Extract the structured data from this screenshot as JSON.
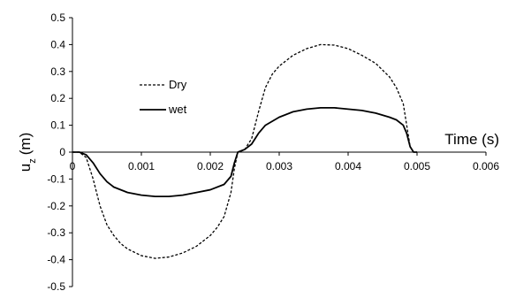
{
  "chart_data": {
    "type": "line",
    "xlabel": "Time (s)",
    "ylabel_main": "u",
    "ylabel_sub": "z",
    "ylabel_unit": "(m)",
    "xlim": [
      0,
      0.006
    ],
    "ylim": [
      -0.5,
      0.5
    ],
    "x_ticks": [
      "0",
      "0.001",
      "0.002",
      "0.003",
      "0.004",
      "0.005",
      "0.006"
    ],
    "y_ticks": [
      "0.5",
      "0.4",
      "0.3",
      "0.2",
      "0.1",
      "0",
      "-0.1",
      "-0.2",
      "-0.3",
      "-0.4",
      "-0.5"
    ],
    "grid": false,
    "legend_position": "upper-left",
    "series": [
      {
        "name": "Dry",
        "style": "dashed",
        "color": "#000000",
        "x": [
          0,
          0.0001,
          0.0002,
          0.0003,
          0.0004,
          0.0005,
          0.0006,
          0.0007,
          0.0008,
          0.001,
          0.0012,
          0.0014,
          0.0016,
          0.0018,
          0.002,
          0.0021,
          0.0022,
          0.0023,
          0.00235,
          0.0024,
          0.00245,
          0.0025,
          0.0026,
          0.0027,
          0.0028,
          0.0029,
          0.003,
          0.0032,
          0.0034,
          0.0036,
          0.0038,
          0.004,
          0.0042,
          0.0044,
          0.0046,
          0.0047,
          0.0048,
          0.00485,
          0.0049,
          0.00495,
          0.005
        ],
        "values": [
          0,
          0,
          -0.02,
          -0.1,
          -0.2,
          -0.27,
          -0.31,
          -0.34,
          -0.36,
          -0.385,
          -0.395,
          -0.39,
          -0.375,
          -0.35,
          -0.31,
          -0.28,
          -0.24,
          -0.15,
          -0.06,
          0,
          0.005,
          0.01,
          0.05,
          0.15,
          0.24,
          0.29,
          0.32,
          0.36,
          0.385,
          0.4,
          0.398,
          0.385,
          0.36,
          0.33,
          0.28,
          0.24,
          0.18,
          0.1,
          0.02,
          0,
          0
        ]
      },
      {
        "name": "wet",
        "style": "solid",
        "color": "#000000",
        "x": [
          0,
          0.0001,
          0.0002,
          0.0003,
          0.0004,
          0.0005,
          0.0006,
          0.0008,
          0.001,
          0.0012,
          0.0014,
          0.0016,
          0.0018,
          0.002,
          0.0022,
          0.0023,
          0.00235,
          0.0024,
          0.00245,
          0.0025,
          0.0026,
          0.0027,
          0.0028,
          0.003,
          0.0032,
          0.0034,
          0.0036,
          0.0038,
          0.004,
          0.0042,
          0.0044,
          0.0046,
          0.0047,
          0.0048,
          0.00485,
          0.0049,
          0.00495,
          0.005
        ],
        "values": [
          0,
          0,
          -0.01,
          -0.04,
          -0.08,
          -0.11,
          -0.13,
          -0.15,
          -0.16,
          -0.165,
          -0.165,
          -0.16,
          -0.15,
          -0.14,
          -0.12,
          -0.09,
          -0.04,
          0,
          0.005,
          0.01,
          0.03,
          0.07,
          0.1,
          0.13,
          0.15,
          0.16,
          0.165,
          0.165,
          0.16,
          0.155,
          0.145,
          0.13,
          0.12,
          0.1,
          0.07,
          0.02,
          0,
          0
        ]
      }
    ]
  }
}
